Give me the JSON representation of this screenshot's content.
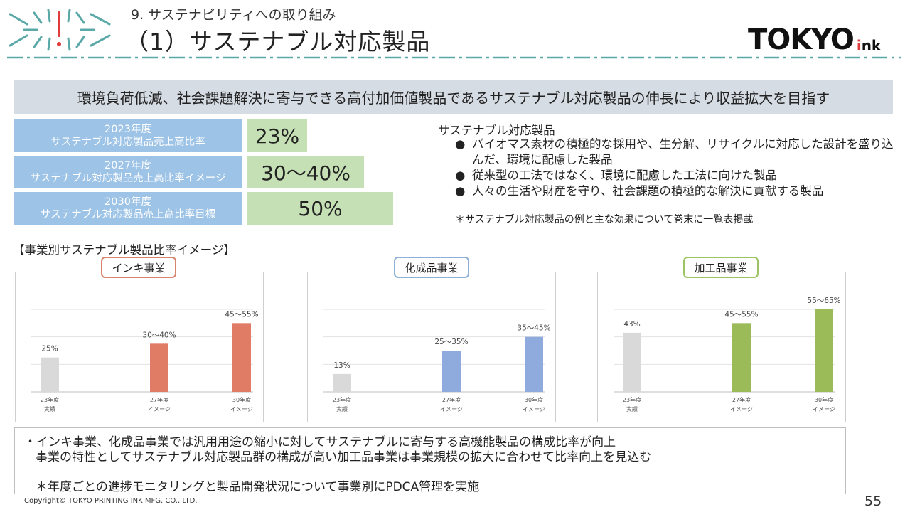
{
  "header": {
    "section_label": "9. サステナビリティへの取り組み",
    "page_title": "（1）サステナブル対応製品",
    "brand_main": "TOKYO",
    "brand_sub_1": "i",
    "brand_sub_2": "nk",
    "colors": {
      "accent_teal": "#5aa9a8",
      "brand_red": "#e03a3a"
    }
  },
  "mission": "環境負荷低減、社会課題解決に寄与できる高付加価値製品であるサステナブル対応製品の伸長により収益拡大を目指す",
  "kpis": [
    {
      "year": "2023年度",
      "label": "サステナブル対応製品売上高比率",
      "value": "23%"
    },
    {
      "year": "2027年度",
      "label": "サステナブル対応製品売上高比率イメージ",
      "value": "30〜40%"
    },
    {
      "year": "2030年度",
      "label": "サステナブル対応製品売上高比率目標",
      "value": "50%"
    }
  ],
  "description": {
    "title": "サステナブル対応製品",
    "bullet": "●",
    "items": [
      "バイオマス素材の積極的な採用や、生分解、リサイクルに対応した設計を盛り込んだ、環境に配慮した製品",
      "従来型の工法ではなく、環境に配慮した工法に向けた製品",
      "人々の生活や財産を守り、社会課題の積極的な解決に貢献する製品"
    ],
    "note": "＊サステナブル対応製品の例と主な効果について巻末に一覧表掲載"
  },
  "charts_heading": "【事業別サステナブル製品比率イメージ】",
  "chart_data": [
    {
      "type": "bar",
      "title": "インキ事業",
      "color": "#e07b65",
      "tag_border": "#d9846f",
      "categories": [
        "23年度 実績",
        "27年度 イメージ",
        "30年度 イメージ"
      ],
      "category_lines": [
        [
          "23年度",
          "実績"
        ],
        [
          "27年度",
          "イメージ"
        ],
        [
          "30年度",
          "イメージ"
        ]
      ],
      "values": [
        25,
        35,
        50
      ],
      "data_labels": [
        "25%",
        "30〜40%",
        "45〜55%"
      ],
      "ylim": [
        0,
        60
      ],
      "grid": true
    },
    {
      "type": "bar",
      "title": "化成品事業",
      "color": "#8faadc",
      "tag_border": "#8fb0d8",
      "categories": [
        "23年度 実績",
        "27年度 イメージ",
        "30年度 イメージ"
      ],
      "category_lines": [
        [
          "23年度",
          "実績"
        ],
        [
          "27年度",
          "イメージ"
        ],
        [
          "30年度",
          "イメージ"
        ]
      ],
      "values": [
        13,
        30,
        40
      ],
      "data_labels": [
        "13%",
        "25〜35%",
        "35〜45%"
      ],
      "ylim": [
        0,
        60
      ],
      "grid": true
    },
    {
      "type": "bar",
      "title": "加工品事業",
      "color": "#9bbb59",
      "tag_border": "#9bc463",
      "categories": [
        "23年度 実績",
        "27年度 イメージ",
        "30年度 イメージ"
      ],
      "category_lines": [
        [
          "23年度",
          "実績"
        ],
        [
          "27年度",
          "イメージ"
        ],
        [
          "30年度",
          "イメージ"
        ]
      ],
      "values": [
        43,
        50,
        60
      ],
      "data_labels": [
        "43%",
        "45〜55%",
        "55〜65%"
      ],
      "ylim": [
        0,
        60
      ],
      "grid": true
    }
  ],
  "first_bar_color": "#d9d9d9",
  "summary": {
    "line1": "・インキ事業、化成品事業では汎用用途の縮小に対してサステナブルに寄与する高機能製品の構成比率が向上",
    "line2": "事業の特性としてサステナブル対応製品群の構成が高い加工品事業は事業規模の拡大に合わせて比率向上を見込む",
    "line3": "＊年度ごとの進捗モニタリングと製品開発状況について事業別にPDCA管理を実施"
  },
  "footer": {
    "copyright": "Copyright© TOKYO PRINTING INK MFG. CO., LTD.",
    "page_number": "55"
  }
}
